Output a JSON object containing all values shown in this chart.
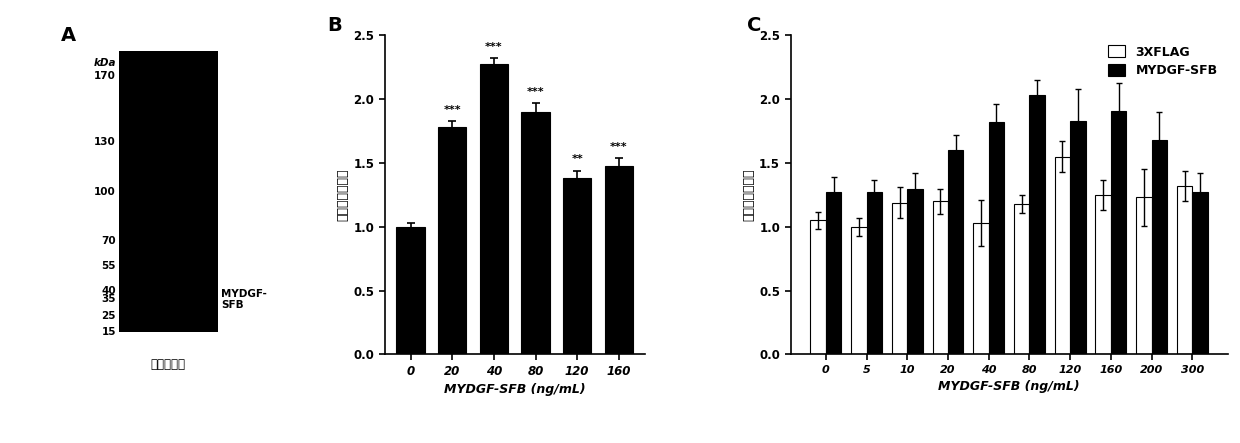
{
  "panel_A": {
    "label": "A",
    "kda_labels": [
      "kDa",
      "170",
      "130",
      "100",
      "70",
      "55",
      "40",
      "35",
      "25",
      "15"
    ],
    "kda_values": [
      170,
      130,
      100,
      70,
      55,
      40,
      35,
      25,
      15
    ],
    "protein_label": "MYDGF-\nSFB",
    "xlabel": "考马斯亮蓝",
    "bar_color": "#000000"
  },
  "panel_B": {
    "label": "B",
    "categories": [
      "0",
      "20",
      "40",
      "80",
      "120",
      "160"
    ],
    "values": [
      1.0,
      1.78,
      2.28,
      1.9,
      1.38,
      1.48
    ],
    "errors": [
      0.03,
      0.05,
      0.04,
      0.07,
      0.06,
      0.06
    ],
    "significance": [
      "",
      "***",
      "***",
      "***",
      "**",
      "***"
    ],
    "bar_color": "#000000",
    "xlabel": "MYDGF-SFB (ng/mL)",
    "ylabel": "相对端粒酶活性",
    "ylim": [
      0,
      2.5
    ],
    "yticks": [
      0.0,
      0.5,
      1.0,
      1.5,
      2.0,
      2.5
    ]
  },
  "panel_C": {
    "label": "C",
    "categories": [
      "0",
      "5",
      "10",
      "20",
      "40",
      "80",
      "120",
      "160",
      "200",
      "300"
    ],
    "values_flag": [
      1.05,
      1.0,
      1.19,
      1.2,
      1.03,
      1.18,
      1.55,
      1.25,
      1.23,
      1.32
    ],
    "errors_flag": [
      0.07,
      0.07,
      0.12,
      0.1,
      0.18,
      0.07,
      0.12,
      0.12,
      0.22,
      0.12
    ],
    "values_mydgf": [
      1.27,
      1.27,
      1.3,
      1.6,
      1.82,
      2.03,
      1.83,
      1.91,
      1.68,
      1.27
    ],
    "errors_mydgf": [
      0.12,
      0.1,
      0.12,
      0.12,
      0.14,
      0.12,
      0.25,
      0.22,
      0.22,
      0.15
    ],
    "bar_color_flag": "#ffffff",
    "bar_color_mydgf": "#000000",
    "xlabel": "MYDGF-SFB (ng/mL)",
    "ylabel": "相对端粒酶活性",
    "ylim": [
      0,
      2.5
    ],
    "yticks": [
      0.0,
      0.5,
      1.0,
      1.5,
      2.0,
      2.5
    ],
    "legend_labels": [
      "3XFLAG",
      "MYDGF-SFB"
    ]
  }
}
